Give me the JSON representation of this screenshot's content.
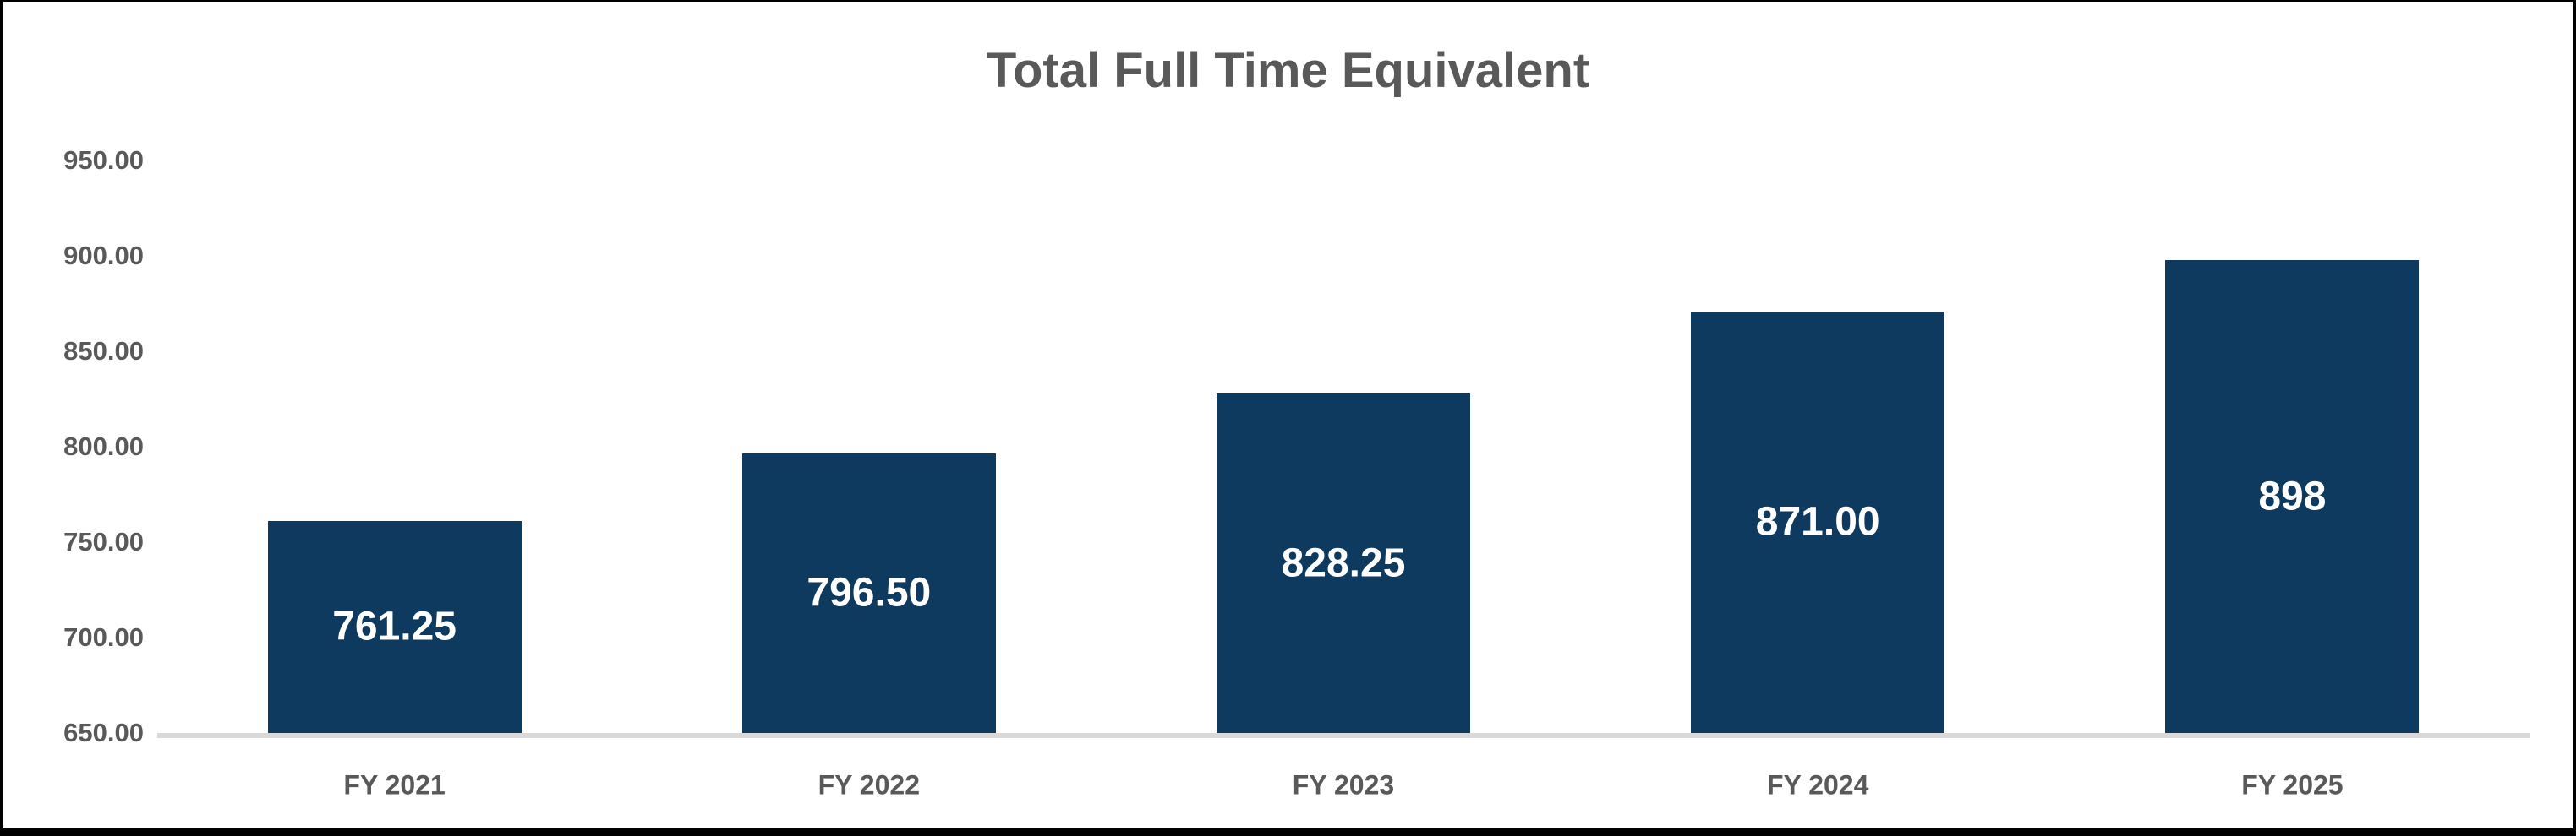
{
  "chart_data": {
    "type": "bar",
    "title": "Total Full Time Equivalent",
    "categories": [
      "FY 2021",
      "FY 2022",
      "FY 2023",
      "FY 2024",
      "FY 2025"
    ],
    "values": [
      761.25,
      796.5,
      828.25,
      871.0,
      898
    ],
    "data_labels": [
      "761.25",
      "796.50",
      "828.25",
      "871.00",
      "898"
    ],
    "xlabel": "",
    "ylabel": "",
    "ylim": [
      650,
      950
    ],
    "ytick_step": 50,
    "ytick_labels": [
      "950.00",
      "900.00",
      "850.00",
      "800.00",
      "750.00",
      "700.00",
      "650.00"
    ],
    "grid": "off",
    "legend": "none",
    "data_label_position": "center-inside",
    "colors": {
      "bar": "#0D3A5E",
      "title_text": "#595959",
      "axis_text": "#595959",
      "data_label_text": "#FFFFFF",
      "axis_line": "#D9D9D9",
      "frame_border": "#000000",
      "background": "#FFFFFF"
    }
  }
}
